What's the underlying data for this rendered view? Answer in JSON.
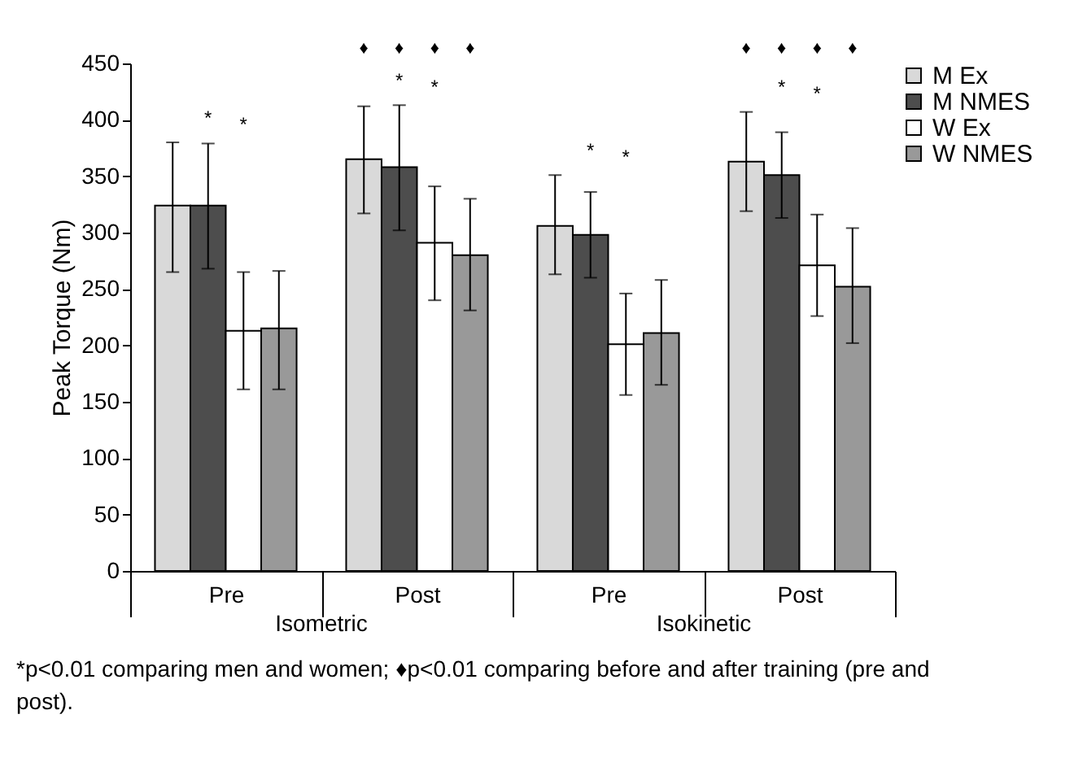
{
  "chart_data": {
    "type": "bar",
    "ylabel": "Peak Torque (Nm)",
    "categories": [
      "Pre",
      "Post",
      "Pre",
      "Post"
    ],
    "series": [
      {
        "name": "M Ex",
        "color": "#d9d9d9",
        "values": [
          324,
          365,
          306,
          363
        ],
        "errors": [
          [
            265,
            380
          ],
          [
            317,
            412
          ],
          [
            263,
            351
          ],
          [
            319,
            407
          ]
        ]
      },
      {
        "name": "M NMES",
        "color": "#4d4d4d",
        "values": [
          324,
          358,
          298,
          351
        ],
        "errors": [
          [
            268,
            379
          ],
          [
            302,
            413
          ],
          [
            260,
            336
          ],
          [
            313,
            389
          ]
        ]
      },
      {
        "name": "W Ex",
        "color": "#ffffff",
        "values": [
          213,
          291,
          201,
          271
        ],
        "errors": [
          [
            161,
            265
          ],
          [
            240,
            341
          ],
          [
            156,
            246
          ],
          [
            226,
            316
          ]
        ]
      },
      {
        "name": "W NMES",
        "color": "#999999",
        "values": [
          215,
          280,
          211,
          252
        ],
        "errors": [
          [
            161,
            266
          ],
          [
            231,
            330
          ],
          [
            165,
            258
          ],
          [
            202,
            304
          ]
        ]
      }
    ],
    "ylim": [
      0,
      450
    ],
    "yticks": [
      0,
      50,
      100,
      150,
      200,
      250,
      300,
      350,
      400,
      450
    ],
    "legend": "right",
    "annotations": [
      "Isometric",
      "Isokinetic",
      "*",
      "*",
      "*",
      "*",
      "*",
      "*",
      "*",
      "*",
      "♦",
      "♦",
      "♦",
      "♦",
      "♦",
      "♦",
      "♦",
      "♦",
      "*p<0.01 comparing men and women; ♦p<0.01 comparing before and after training (pre and post)."
    ]
  }
}
